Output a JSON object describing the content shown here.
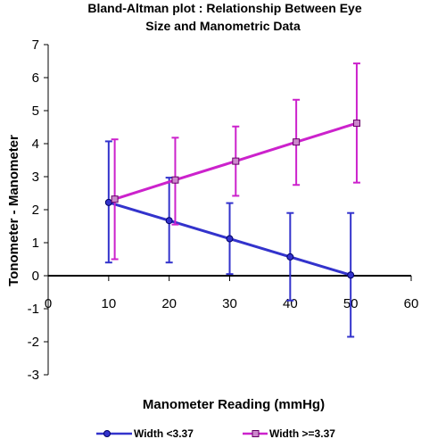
{
  "chart_data": {
    "type": "line",
    "title_line1": "Bland-Altman plot : Relationship Between Eye",
    "title_line2": "Size and Manometric Data",
    "xlabel": "Manometer Reading (mmHg)",
    "ylabel": "Tonometer  - Manometer",
    "xlim": [
      0,
      60
    ],
    "ylim": [
      -3,
      7
    ],
    "xticks": [
      "0",
      "10",
      "20",
      "30",
      "40",
      "50",
      "60"
    ],
    "yticks": [
      "-3",
      "-2",
      "-1",
      "0",
      "1",
      "2",
      "3",
      "4",
      "5",
      "6",
      "7"
    ],
    "grid": false,
    "legend_position": "bottom",
    "series": [
      {
        "name": "Width <3.37",
        "color": "#3333cc",
        "marker": "circle",
        "x": [
          10,
          20,
          30,
          40,
          50
        ],
        "y": [
          2.22,
          1.67,
          1.12,
          0.57,
          0.02
        ],
        "err_low": [
          0.4,
          0.4,
          0.05,
          -0.75,
          -1.85
        ],
        "err_high": [
          4.07,
          2.97,
          2.2,
          1.9,
          1.9
        ]
      },
      {
        "name": "Width >=3.37",
        "color": "#cc22cc",
        "marker": "square",
        "x": [
          11,
          21,
          31,
          41,
          51
        ],
        "y": [
          2.32,
          2.9,
          3.47,
          4.05,
          4.62
        ],
        "err_low": [
          0.5,
          1.55,
          2.42,
          2.75,
          2.82
        ],
        "err_high": [
          4.13,
          4.18,
          4.52,
          5.33,
          6.43
        ]
      }
    ]
  }
}
